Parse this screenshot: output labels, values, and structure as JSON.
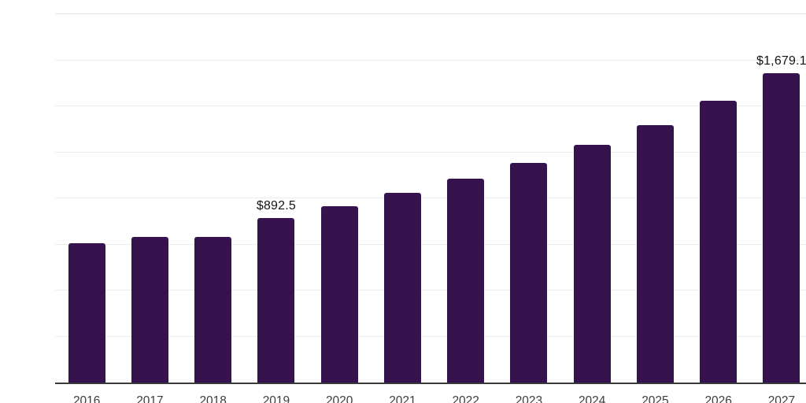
{
  "chart_data": {
    "type": "bar",
    "title": "",
    "xlabel": "",
    "ylabel": "",
    "categories": [
      "2016",
      "2017",
      "2018",
      "2019",
      "2020",
      "2021",
      "2022",
      "2023",
      "2024",
      "2025",
      "2026",
      "2027"
    ],
    "values": [
      758,
      792,
      789,
      892.5,
      959,
      1029,
      1108,
      1191,
      1289,
      1396,
      1531,
      1679.1
    ],
    "labeled_points": [
      {
        "index": 3,
        "category": "2019",
        "label": "$892.5"
      },
      {
        "index": 11,
        "category": "2027",
        "label": "$1,679.1"
      }
    ],
    "ylim": [
      0,
      2000
    ],
    "gridline_step": 250,
    "grid": true,
    "legend": false
  },
  "colors": {
    "bar": "#36124e",
    "gridline": "#ececec",
    "top_gridline": "#e4e4e4",
    "axis_line": "#3a3a3a",
    "tick_label": "#3d3d3d",
    "data_label": "#141414",
    "background": "#ffffff"
  }
}
